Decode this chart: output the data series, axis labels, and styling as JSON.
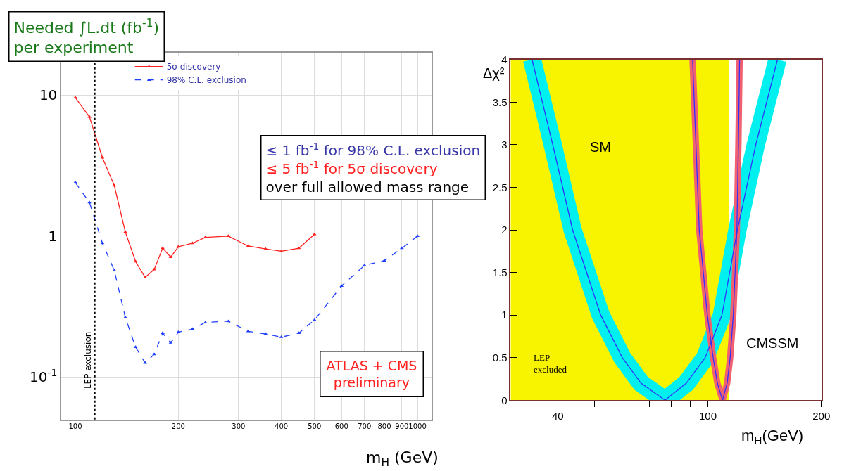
{
  "chart_data": [
    {
      "type": "line",
      "title": "Needed ∫L.dt (fb$^{-1}$)\nper experiment",
      "xlabel": "m$_{H}$ (GeV)",
      "annotations": [
        "≤ 1 fb$^{-1}$ for 98% C.L. exclusion",
        "≤ 5 fb$^{-1}$ for 5σ discovery",
        "over full allowed mass range",
        "ATLAS + CMS\npreliminary"
      ],
      "series": [
        {
          "name": "5σ discovery",
          "color": "#ff2020",
          "line_style": "solid",
          "x": [
            100,
            110,
            120,
            130,
            140,
            150,
            160,
            170,
            180,
            190,
            200,
            220,
            240,
            280,
            320,
            360,
            400,
            450,
            500
          ],
          "values": [
            9.6,
            7.0,
            3.6,
            2.28,
            1.07,
            0.66,
            0.51,
            0.58,
            0.82,
            0.71,
            0.84,
            0.89,
            0.98,
            1.0,
            0.85,
            0.81,
            0.78,
            0.82,
            1.03
          ]
        },
        {
          "name": "98% C.L. exclusion",
          "color": "#2040ff",
          "line_style": "dashed",
          "x": [
            100,
            110,
            120,
            130,
            140,
            150,
            160,
            170,
            180,
            190,
            200,
            220,
            240,
            280,
            320,
            360,
            400,
            450,
            500,
            600,
            700,
            800,
            900,
            1000
          ],
          "values": [
            2.4,
            1.73,
            0.89,
            0.57,
            0.265,
            0.163,
            0.126,
            0.145,
            0.205,
            0.175,
            0.208,
            0.219,
            0.244,
            0.249,
            0.211,
            0.202,
            0.192,
            0.205,
            0.254,
            0.443,
            0.62,
            0.67,
            0.82,
            1.0
          ]
        }
      ],
      "marker": "triangle",
      "log": "xy",
      "xlim": [
        91,
        1100
      ],
      "ylim": [
        0.05,
        20
      ],
      "xticks": [
        100,
        200,
        300,
        400,
        500,
        600,
        700,
        800,
        900,
        1000
      ],
      "yticks": [
        {
          "value": 0.1,
          "label": "10$^{-1}$"
        },
        1,
        10
      ],
      "grid": true,
      "legend": "top",
      "ref_lines": [
        {
          "axis": "x",
          "value": 114,
          "label": "LEP exclusion",
          "color": "#000000",
          "line_style": "dotted"
        }
      ]
    },
    {
      "type": "line",
      "xlabel": "m$_{H}$(GeV)",
      "ylabel": "Δχ²",
      "log": "x",
      "xlim": [
        30,
        200
      ],
      "ylim": [
        0,
        4
      ],
      "xticks": [
        40,
        {
          "value": 50,
          "label": null
        },
        {
          "value": 60,
          "label": null
        },
        {
          "value": 70,
          "label": null
        },
        {
          "value": 80,
          "label": null
        },
        {
          "value": 90,
          "label": null
        },
        100,
        200
      ],
      "yticks": [
        0,
        0.5,
        1,
        1.5,
        2,
        2.5,
        3,
        3.5,
        4
      ],
      "bands": [
        {
          "axis": "x",
          "from": 30,
          "to": 114,
          "label": "LEP\nexcluded",
          "color": "#f8f400"
        }
      ],
      "series": [
        {
          "name": "SM",
          "color": "#00f0f0",
          "x": [
            34.2,
            38.8,
            43.8,
            52,
            59.3,
            66.5,
            77,
            87.7,
            98.4,
            109,
            119.8,
            134,
            153
          ],
          "values": [
            4,
            3,
            2,
            1,
            0.5,
            0.2,
            0,
            0.2,
            0.5,
            1,
            2,
            3,
            4
          ]
        },
        {
          "name": "CMSSM",
          "color": "#f06070",
          "x": [
            91.1,
            93,
            94.9,
            99.7,
            103.3,
            106,
            109.4,
            112.5,
            114.6,
            116.8,
            119.4,
            120.5,
            121.4
          ],
          "values": [
            4,
            3,
            2,
            1,
            0.5,
            0.2,
            0,
            0.2,
            0.5,
            1,
            2,
            3,
            4
          ]
        },
        {
          "color": "#3030ff",
          "x": [
            34.2,
            38.8,
            43.8,
            52,
            59.3,
            66.5,
            77,
            87.7,
            98.4,
            109,
            119.8,
            134,
            153
          ],
          "values": [
            4,
            3,
            2,
            1,
            0.5,
            0.2,
            0,
            0.2,
            0.5,
            1,
            2,
            3,
            4
          ]
        },
        {
          "color": "#3030ff",
          "x": [
            91.1,
            93,
            94.9,
            99.7,
            103.3,
            106,
            109.4,
            112.5,
            114.6,
            116.8,
            119.4,
            120.5,
            121.4
          ],
          "values": [
            4,
            3,
            2,
            1,
            0.5,
            0.2,
            0,
            0.2,
            0.5,
            1,
            2,
            3,
            4
          ]
        }
      ]
    }
  ]
}
